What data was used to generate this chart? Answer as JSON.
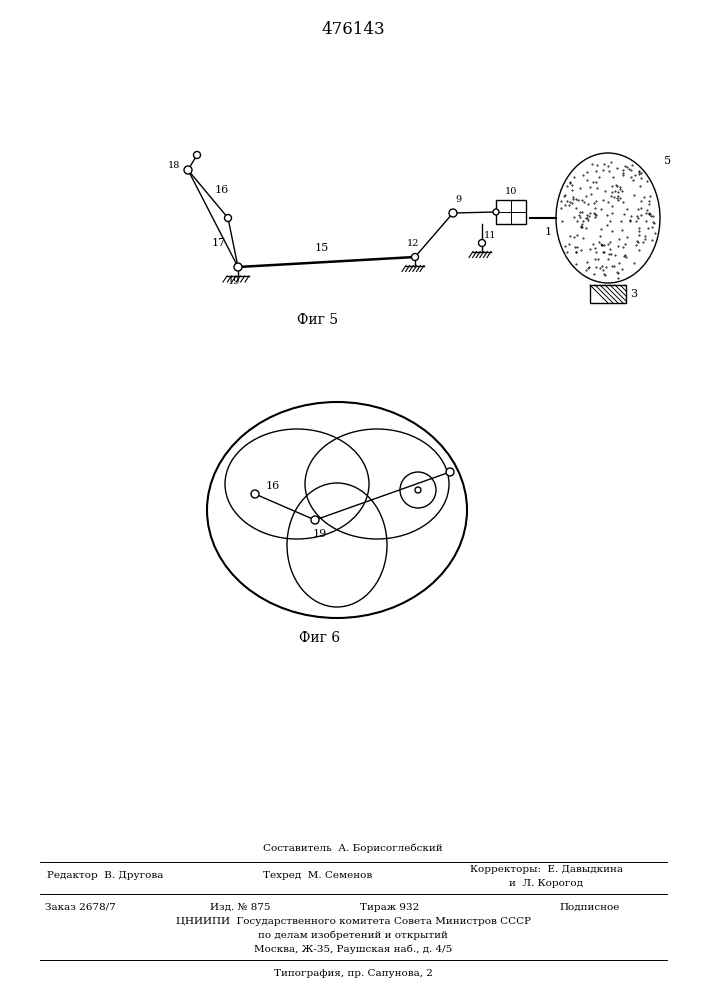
{
  "title": "476143",
  "fig5_label": "Фиг 5",
  "fig6_label": "Фиг 6",
  "bg_color": "#ffffff",
  "line_color": "#000000",
  "sestavitel": "Составитель  А. Борисоглебский",
  "redaktor": "Редактор  В. Другова",
  "tehred": "Техред  М. Семенов",
  "korrektory1": "Корректоры:  Е. Давыдкина",
  "korrektory2": "и  Л. Корогод",
  "zakaz": "Заказ 2678/7",
  "izd": "Изд. № 875",
  "tirazh": "Тираж 932",
  "podpisnoe": "Подписное",
  "cniip1": "ЦНИИПИ  Государственного комитета Совета Министров СССР",
  "cniip2": "по делам изобретений и открытий",
  "cniip3": "Москва, Ж-35, Раушская наб., д. 4/5",
  "tipografiya": "Типография, пр. Сапунова, 2"
}
